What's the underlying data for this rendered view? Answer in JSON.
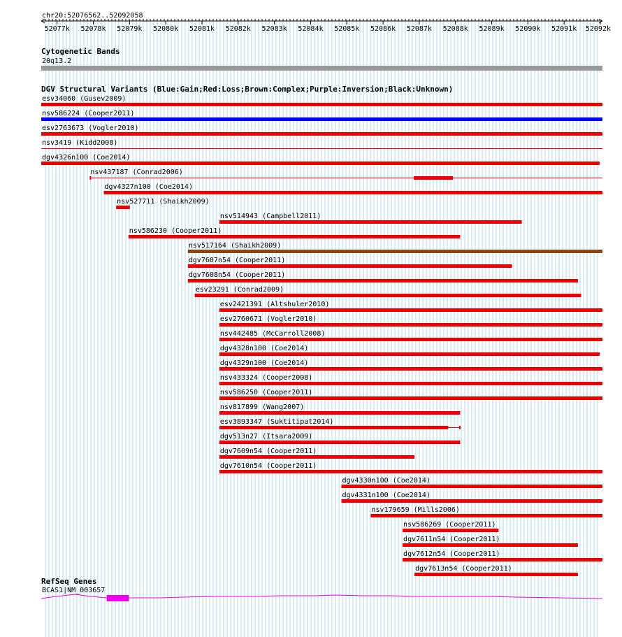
{
  "region": "chr20:52076562..52092058",
  "range": {
    "start": 52076562,
    "end": 52092058
  },
  "ruler_ticks": [
    {
      "pos": 52077000,
      "label": "52077k"
    },
    {
      "pos": 52078000,
      "label": "52078k"
    },
    {
      "pos": 52079000,
      "label": "52079k"
    },
    {
      "pos": 52080000,
      "label": "52080k"
    },
    {
      "pos": 52081000,
      "label": "52081k"
    },
    {
      "pos": 52082000,
      "label": "52082k"
    },
    {
      "pos": 52083000,
      "label": "52083k"
    },
    {
      "pos": 52084000,
      "label": "52084k"
    },
    {
      "pos": 52085000,
      "label": "52085k"
    },
    {
      "pos": 52086000,
      "label": "52086k"
    },
    {
      "pos": 52087000,
      "label": "52087k"
    },
    {
      "pos": 52088000,
      "label": "52088k"
    },
    {
      "pos": 52089000,
      "label": "52089k"
    },
    {
      "pos": 52090000,
      "label": "52090k"
    },
    {
      "pos": 52091000,
      "label": "52091k"
    },
    {
      "pos": 52092000,
      "label": "52092k"
    }
  ],
  "colors": {
    "gain": "#0000ff",
    "loss": "#ee0000",
    "complex": "#8b4513",
    "gene": "#ee00ee",
    "grid": "#b0d8e8",
    "band": "#999999"
  },
  "cytoband_track": {
    "title": "Cytogenetic Bands",
    "band": "20q13.2"
  },
  "dgv_track": {
    "title": "DGV Structural Variants (Blue:Gain;Red:Loss;Brown:Complex;Purple:Inversion;Black:Unknown)",
    "variants": [
      {
        "label": "esv34060 (Gusev2009)",
        "start": 52076562,
        "end": 52092058,
        "type": "loss"
      },
      {
        "label": "nsv586224 (Cooper2011)",
        "start": 52076562,
        "end": 52092058,
        "type": "gain"
      },
      {
        "label": "esv2763673 (Vogler2010)",
        "start": 52076562,
        "end": 52092058,
        "type": "loss"
      },
      {
        "label": "nsv3419 (Kidd2008)",
        "start": 52076562,
        "end": 52092058,
        "type": "loss",
        "thin": true
      },
      {
        "label": "dgv4326n100 (Coe2014)",
        "start": 52076562,
        "end": 52091980,
        "type": "loss"
      },
      {
        "label": "nsv437187 (Conrad2006)",
        "start": 52077900,
        "end": 52092058,
        "type": "loss",
        "blocks": [
          [
            52077900,
            52077930
          ],
          [
            52086850,
            52087930
          ]
        ]
      },
      {
        "label": "dgv4327n100 (Coe2014)",
        "start": 52078290,
        "end": 52092058,
        "type": "loss"
      },
      {
        "label": "nsv527711 (Shaikh2009)",
        "start": 52078630,
        "end": 52079010,
        "type": "loss"
      },
      {
        "label": "nsv514943 (Campbell2011)",
        "start": 52081480,
        "end": 52089830,
        "type": "loss"
      },
      {
        "label": "nsv586230 (Cooper2011)",
        "start": 52078970,
        "end": 52088130,
        "type": "loss"
      },
      {
        "label": "nsv517164 (Shaikh2009)",
        "start": 52080610,
        "end": 52092058,
        "type": "complex"
      },
      {
        "label": "dgv7607n54 (Cooper2011)",
        "start": 52080610,
        "end": 52089560,
        "type": "loss"
      },
      {
        "label": "dgv7608n54 (Cooper2011)",
        "start": 52080610,
        "end": 52091380,
        "type": "loss"
      },
      {
        "label": "esv23291 (Conrad2009)",
        "start": 52080800,
        "end": 52091470,
        "type": "loss"
      },
      {
        "label": "esv2421391 (Altshuler2010)",
        "start": 52081480,
        "end": 52092058,
        "type": "loss"
      },
      {
        "label": "esv2760671 (Vogler2010)",
        "start": 52081480,
        "end": 52092058,
        "type": "loss"
      },
      {
        "label": "nsv442485 (McCarroll2008)",
        "start": 52081480,
        "end": 52092058,
        "type": "loss"
      },
      {
        "label": "dgv4328n100 (Coe2014)",
        "start": 52081480,
        "end": 52091980,
        "type": "loss"
      },
      {
        "label": "dgv4329n100 (Coe2014)",
        "start": 52081480,
        "end": 52092058,
        "type": "loss"
      },
      {
        "label": "nsv433324 (Cooper2008)",
        "start": 52081480,
        "end": 52092058,
        "type": "loss"
      },
      {
        "label": "nsv586250 (Cooper2011)",
        "start": 52081480,
        "end": 52092058,
        "type": "loss"
      },
      {
        "label": "nsv817899 (Wang2007)",
        "start": 52081480,
        "end": 52088130,
        "type": "loss"
      },
      {
        "label": "esv3893347 (Suktitipat2014)",
        "start": 52081480,
        "end": 52088130,
        "type": "loss",
        "blocks": [
          [
            52081480,
            52087800
          ],
          [
            52088100,
            52088130
          ]
        ]
      },
      {
        "label": "dgv513n27 (Itsara2009)",
        "start": 52081480,
        "end": 52088130,
        "type": "loss"
      },
      {
        "label": "dgv7609n54 (Cooper2011)",
        "start": 52081480,
        "end": 52086870,
        "type": "loss"
      },
      {
        "label": "dgv7610n54 (Cooper2011)",
        "start": 52081480,
        "end": 52092058,
        "type": "loss"
      },
      {
        "label": "dgv4330n100 (Coe2014)",
        "start": 52084850,
        "end": 52092058,
        "type": "loss"
      },
      {
        "label": "dgv4331n100 (Coe2014)",
        "start": 52084850,
        "end": 52092058,
        "type": "loss"
      },
      {
        "label": "nsv179659 (Mills2006)",
        "start": 52085660,
        "end": 52092058,
        "type": "loss"
      },
      {
        "label": "nsv586269 (Cooper2011)",
        "start": 52086540,
        "end": 52089190,
        "type": "loss"
      },
      {
        "label": "dgv7611n54 (Cooper2011)",
        "start": 52086540,
        "end": 52091380,
        "type": "loss"
      },
      {
        "label": "dgv7612n54 (Cooper2011)",
        "start": 52086540,
        "end": 52092058,
        "type": "loss"
      },
      {
        "label": "dgv7613n54 (Cooper2011)",
        "start": 52086870,
        "end": 52091380,
        "type": "loss"
      }
    ]
  },
  "refseq_track": {
    "title": "RefSeq Genes",
    "gene_label": "BCAS1|NM_003657",
    "exon": [
      52078370,
      52078980
    ]
  }
}
